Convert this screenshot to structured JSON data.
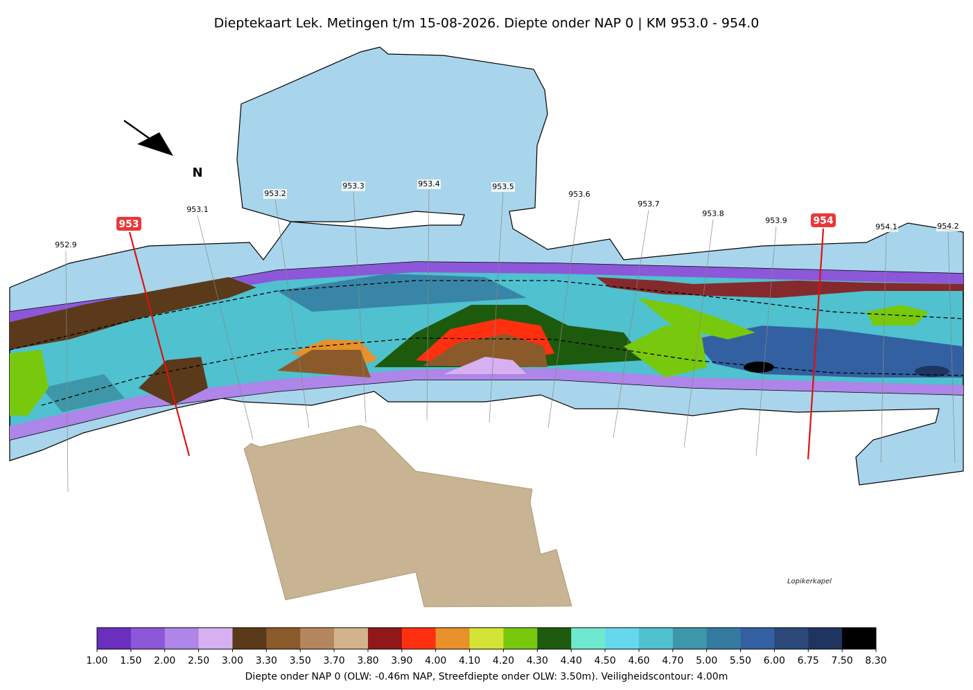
{
  "title": "Dieptekaart Lek. Metingen t/m 15-08-2026. Diepte onder NAP 0 | KM 953.0 - 954.0",
  "north": "N",
  "place": "Lopikerkapel",
  "km_labels": [
    "952.9",
    "953.1",
    "953.2",
    "953.3",
    "953.4",
    "953.5",
    "953.6",
    "953.7",
    "953.8",
    "953.9",
    "954.1",
    "954.2"
  ],
  "km_major": [
    "953",
    "954"
  ],
  "colorbar": {
    "label": "Diepte onder NAP 0 (OLW: -0.46m NAP, Streefdiepte onder OLW: 3.50m). Veiligheidscontour: 4.00m",
    "bounds": [
      {
        "value": 1,
        "label": "1.00"
      },
      {
        "value": 1.5,
        "label": "1.50"
      },
      {
        "value": 2,
        "label": "2.00"
      },
      {
        "value": 2.5,
        "label": "2.50"
      },
      {
        "value": 3,
        "label": "3.00"
      },
      {
        "value": 3.3,
        "label": "3.30"
      },
      {
        "value": 3.5,
        "label": "3.50"
      },
      {
        "value": 3.7,
        "label": "3.70"
      },
      {
        "value": 3.8,
        "label": "3.80"
      },
      {
        "value": 3.9,
        "label": "3.90"
      },
      {
        "value": 4,
        "label": "4.00"
      },
      {
        "value": 4.1,
        "label": "4.10"
      },
      {
        "value": 4.2,
        "label": "4.20"
      },
      {
        "value": 4.3,
        "label": "4.30"
      },
      {
        "value": 4.4,
        "label": "4.40"
      },
      {
        "value": 4.5,
        "label": "4.50"
      },
      {
        "value": 4.6,
        "label": "4.60"
      },
      {
        "value": 4.7,
        "label": "4.70"
      },
      {
        "value": 5,
        "label": "5.00"
      },
      {
        "value": 5.5,
        "label": "5.50"
      },
      {
        "value": 6,
        "label": "6.00"
      },
      {
        "value": 6.75,
        "label": "6.75"
      },
      {
        "value": 7.5,
        "label": "7.50"
      },
      {
        "value": 8.3,
        "label": "8.30"
      }
    ],
    "colors": [
      "#6a2fbf",
      "#8c57d8",
      "#ae85e8",
      "#d6b0f0",
      "#5a3a1a",
      "#8b5a2b",
      "#b5865e",
      "#d2b48c",
      "#901818",
      "#ff3010",
      "#e8902a",
      "#d4e436",
      "#78c80e",
      "#1e5a0e",
      "#6fe8d0",
      "#66d8ee",
      "#4fc1cf",
      "#3d97a8",
      "#347aa0",
      "#3360a0",
      "#2b4878",
      "#1f3560",
      "#000000"
    ]
  }
}
